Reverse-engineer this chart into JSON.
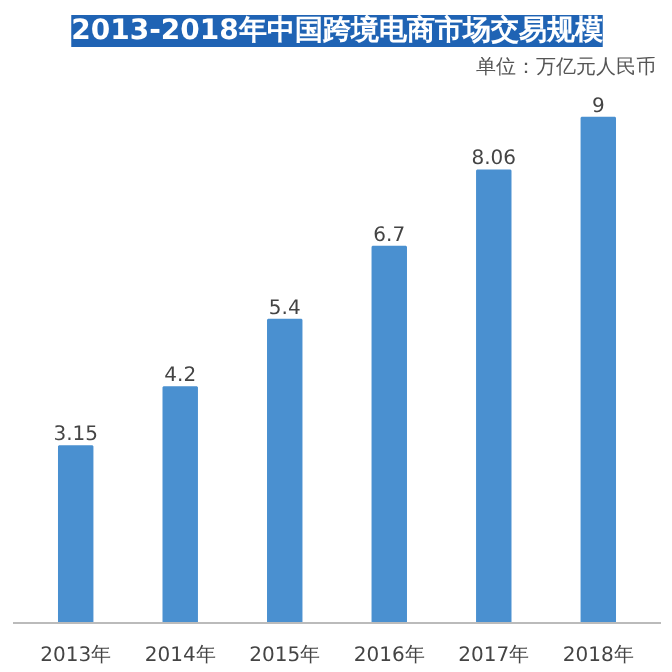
{
  "chart_data": {
    "type": "bar",
    "title": "2013-2018年中国跨境电商市场交易规模",
    "annotations": [
      "单位：万亿元人民币"
    ],
    "categories": [
      "2013年",
      "2014年",
      "2015年",
      "2016年",
      "2017年",
      "2018年"
    ],
    "values": [
      3.15,
      4.2,
      5.4,
      6.7,
      8.06,
      9
    ],
    "color": "#4a90d0",
    "data_labels": true
  }
}
